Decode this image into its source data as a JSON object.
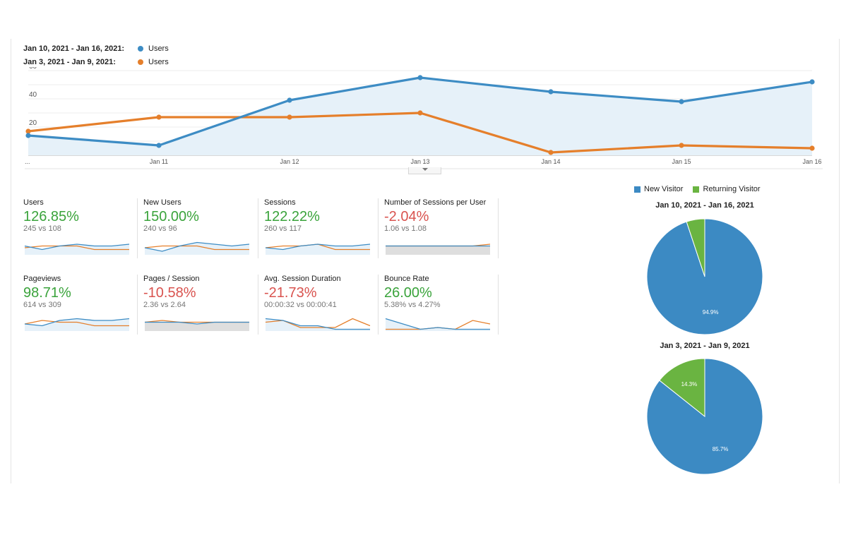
{
  "colors": {
    "current": "#3d8cc4",
    "previous": "#e57f2b",
    "new_visitor": "#3c8ac3",
    "returning_visitor": "#6ab441",
    "positive": "#3aa33b",
    "negative": "#d9534f"
  },
  "legend": [
    {
      "range": "Jan 10, 2021 - Jan 16, 2021:",
      "metric": "Users"
    },
    {
      "range": "Jan 3, 2021 - Jan 9, 2021:",
      "metric": "Users"
    }
  ],
  "chart_data": [
    {
      "type": "line",
      "title": "",
      "categories": [
        "...",
        "Jan 11",
        "Jan 12",
        "Jan 13",
        "Jan 14",
        "Jan 15",
        "Jan 16"
      ],
      "yticks": [
        "60",
        "40",
        "20"
      ],
      "ylim": [
        0,
        60
      ],
      "series": [
        {
          "name": "Jan 10, 2021 - Jan 16, 2021: Users",
          "values": [
            14,
            7,
            39,
            55,
            45,
            38,
            52
          ]
        },
        {
          "name": "Jan 3, 2021 - Jan 9, 2021: Users",
          "values": [
            17,
            27,
            27,
            30,
            2,
            7,
            5
          ]
        }
      ]
    },
    {
      "type": "pie",
      "title": "Jan 10, 2021 - Jan 16, 2021",
      "labels": [
        "New Visitor",
        "Returning Visitor"
      ],
      "values": [
        94.9,
        5.1
      ],
      "slice_labels": [
        "94.9%",
        ""
      ]
    },
    {
      "type": "pie",
      "title": "Jan 3, 2021 - Jan 9, 2021",
      "labels": [
        "New Visitor",
        "Returning Visitor"
      ],
      "values": [
        85.7,
        14.3
      ],
      "slice_labels": [
        "85.7%",
        "14.3%"
      ]
    }
  ],
  "pie_legend": [
    "New Visitor",
    "Returning Visitor"
  ],
  "metrics": [
    {
      "title": "Users",
      "value": "126.85%",
      "trend": "pos",
      "comparison": "245 vs 108",
      "current": [
        5,
        3,
        5,
        6,
        5,
        5,
        6
      ],
      "previous": [
        4,
        5,
        5,
        5,
        3,
        3,
        3
      ]
    },
    {
      "title": "New Users",
      "value": "150.00%",
      "trend": "pos",
      "comparison": "240 vs 96",
      "current": [
        4,
        2,
        5,
        7,
        6,
        5,
        6
      ],
      "previous": [
        4,
        5,
        5,
        5,
        3,
        3,
        3
      ]
    },
    {
      "title": "Sessions",
      "value": "122.22%",
      "trend": "pos",
      "comparison": "260 vs 117",
      "current": [
        4,
        3,
        5,
        6,
        5,
        5,
        6
      ],
      "previous": [
        4,
        5,
        5,
        6,
        3,
        3,
        3
      ]
    },
    {
      "title": "Number of Sessions per User",
      "value": "-2.04%",
      "trend": "neg",
      "comparison": "1.06 vs 1.08",
      "current": [
        5,
        5,
        5,
        5,
        5,
        5,
        5
      ],
      "previous": [
        5,
        5,
        5,
        5,
        5,
        5,
        6
      ],
      "shaded": true
    },
    {
      "title": "Pageviews",
      "value": "98.71%",
      "trend": "pos",
      "comparison": "614 vs 309",
      "current": [
        4,
        3,
        6,
        7,
        6,
        6,
        7
      ],
      "previous": [
        4,
        6,
        5,
        5,
        3,
        3,
        3
      ]
    },
    {
      "title": "Pages / Session",
      "value": "-10.58%",
      "trend": "neg",
      "comparison": "2.36 vs 2.64",
      "current": [
        5,
        5,
        5,
        4,
        5,
        5,
        5
      ],
      "previous": [
        5,
        6,
        5,
        5,
        5,
        5,
        5
      ],
      "shaded": true
    },
    {
      "title": "Avg. Session Duration",
      "value": "-21.73%",
      "trend": "neg",
      "comparison": "00:00:32 vs 00:00:41",
      "current": [
        7,
        6,
        3,
        3,
        1,
        1,
        1
      ],
      "previous": [
        5,
        6,
        2,
        2,
        2,
        7,
        3
      ]
    },
    {
      "title": "Bounce Rate",
      "value": "26.00%",
      "trend": "pos",
      "comparison": "5.38% vs 4.27%",
      "current": [
        7,
        4,
        1,
        2,
        1,
        1,
        1
      ],
      "previous": [
        1,
        1,
        1,
        2,
        1,
        6,
        4
      ]
    }
  ]
}
